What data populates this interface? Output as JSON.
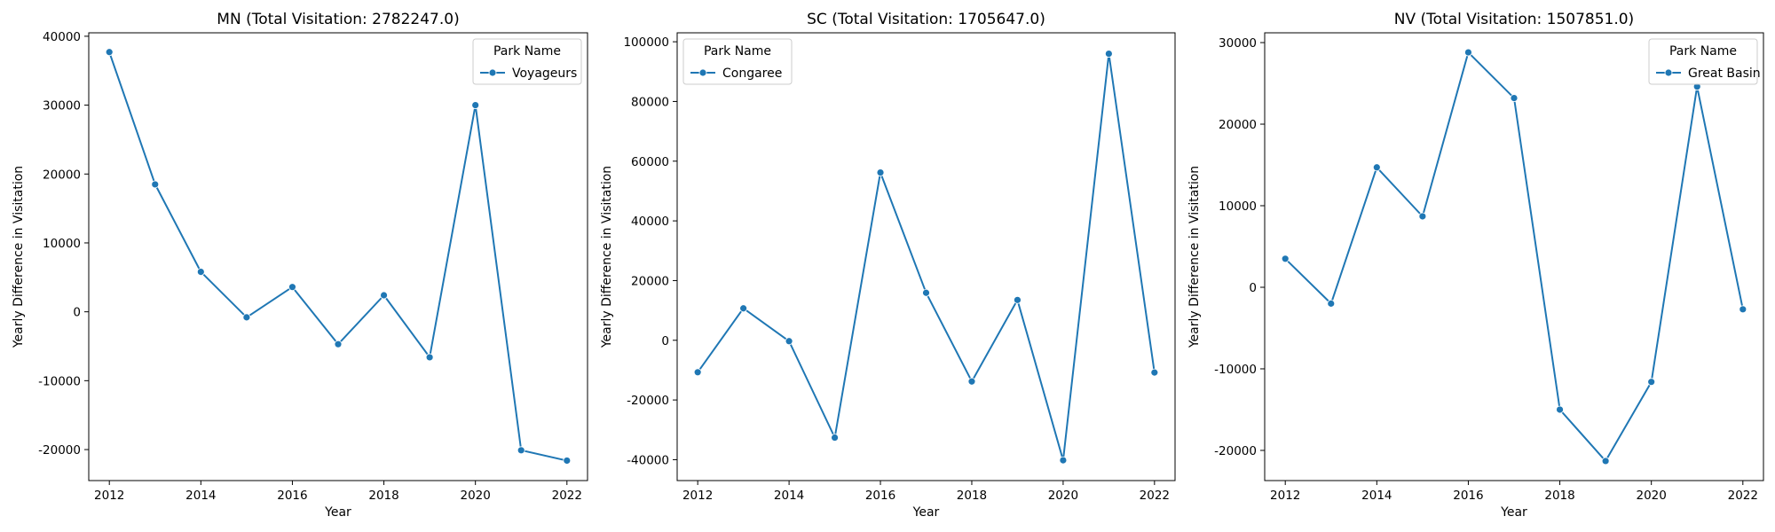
{
  "figure": {
    "line_color": "#1f77b4"
  },
  "chart_data": [
    {
      "type": "line",
      "title": "MN (Total Visitation: 2782247.0)",
      "xlabel": "Year",
      "ylabel": "Yearly Difference in Visitation",
      "xlim": [
        2011.55,
        2022.45
      ],
      "ylim": [
        -24500,
        40500
      ],
      "xticks": [
        2012,
        2014,
        2016,
        2018,
        2020,
        2022
      ],
      "yticks": [
        -20000,
        -10000,
        0,
        10000,
        20000,
        30000,
        40000
      ],
      "legend": {
        "title": "Park Name",
        "position": "top-right"
      },
      "series": [
        {
          "name": "Voyageurs",
          "x": [
            2012,
            2013,
            2014,
            2015,
            2016,
            2017,
            2018,
            2019,
            2020,
            2021,
            2022
          ],
          "y": [
            37700,
            18500,
            5800,
            -800,
            3600,
            -4700,
            2400,
            -6600,
            30000,
            -20100,
            -21600
          ]
        }
      ]
    },
    {
      "type": "line",
      "title": "SC (Total Visitation: 1705647.0)",
      "xlabel": "Year",
      "ylabel": "Yearly Difference in Visitation",
      "xlim": [
        2011.55,
        2022.45
      ],
      "ylim": [
        -47000,
        103000
      ],
      "xticks": [
        2012,
        2014,
        2016,
        2018,
        2020,
        2022
      ],
      "yticks": [
        -40000,
        -20000,
        0,
        20000,
        40000,
        60000,
        80000,
        100000
      ],
      "legend": {
        "title": "Park Name",
        "position": "top-left"
      },
      "series": [
        {
          "name": "Congaree",
          "x": [
            2012,
            2013,
            2014,
            2015,
            2016,
            2017,
            2018,
            2019,
            2020,
            2021,
            2022
          ],
          "y": [
            -10700,
            10700,
            -300,
            -32600,
            56200,
            15900,
            -13800,
            13500,
            -40200,
            96000,
            -10800
          ]
        }
      ]
    },
    {
      "type": "line",
      "title": "NV (Total Visitation: 1507851.0)",
      "xlabel": "Year",
      "ylabel": "Yearly Difference in Visitation",
      "xlim": [
        2011.55,
        2022.45
      ],
      "ylim": [
        -23700,
        31200
      ],
      "xticks": [
        2012,
        2014,
        2016,
        2018,
        2020,
        2022
      ],
      "yticks": [
        -20000,
        -10000,
        0,
        10000,
        20000,
        30000
      ],
      "legend": {
        "title": "Park Name",
        "position": "top-right"
      },
      "series": [
        {
          "name": "Great Basin",
          "x": [
            2012,
            2013,
            2014,
            2015,
            2016,
            2017,
            2018,
            2019,
            2020,
            2021,
            2022
          ],
          "y": [
            3500,
            -2000,
            14700,
            8700,
            28800,
            23200,
            -15000,
            -21300,
            -11600,
            24600,
            -2700
          ]
        }
      ]
    }
  ]
}
